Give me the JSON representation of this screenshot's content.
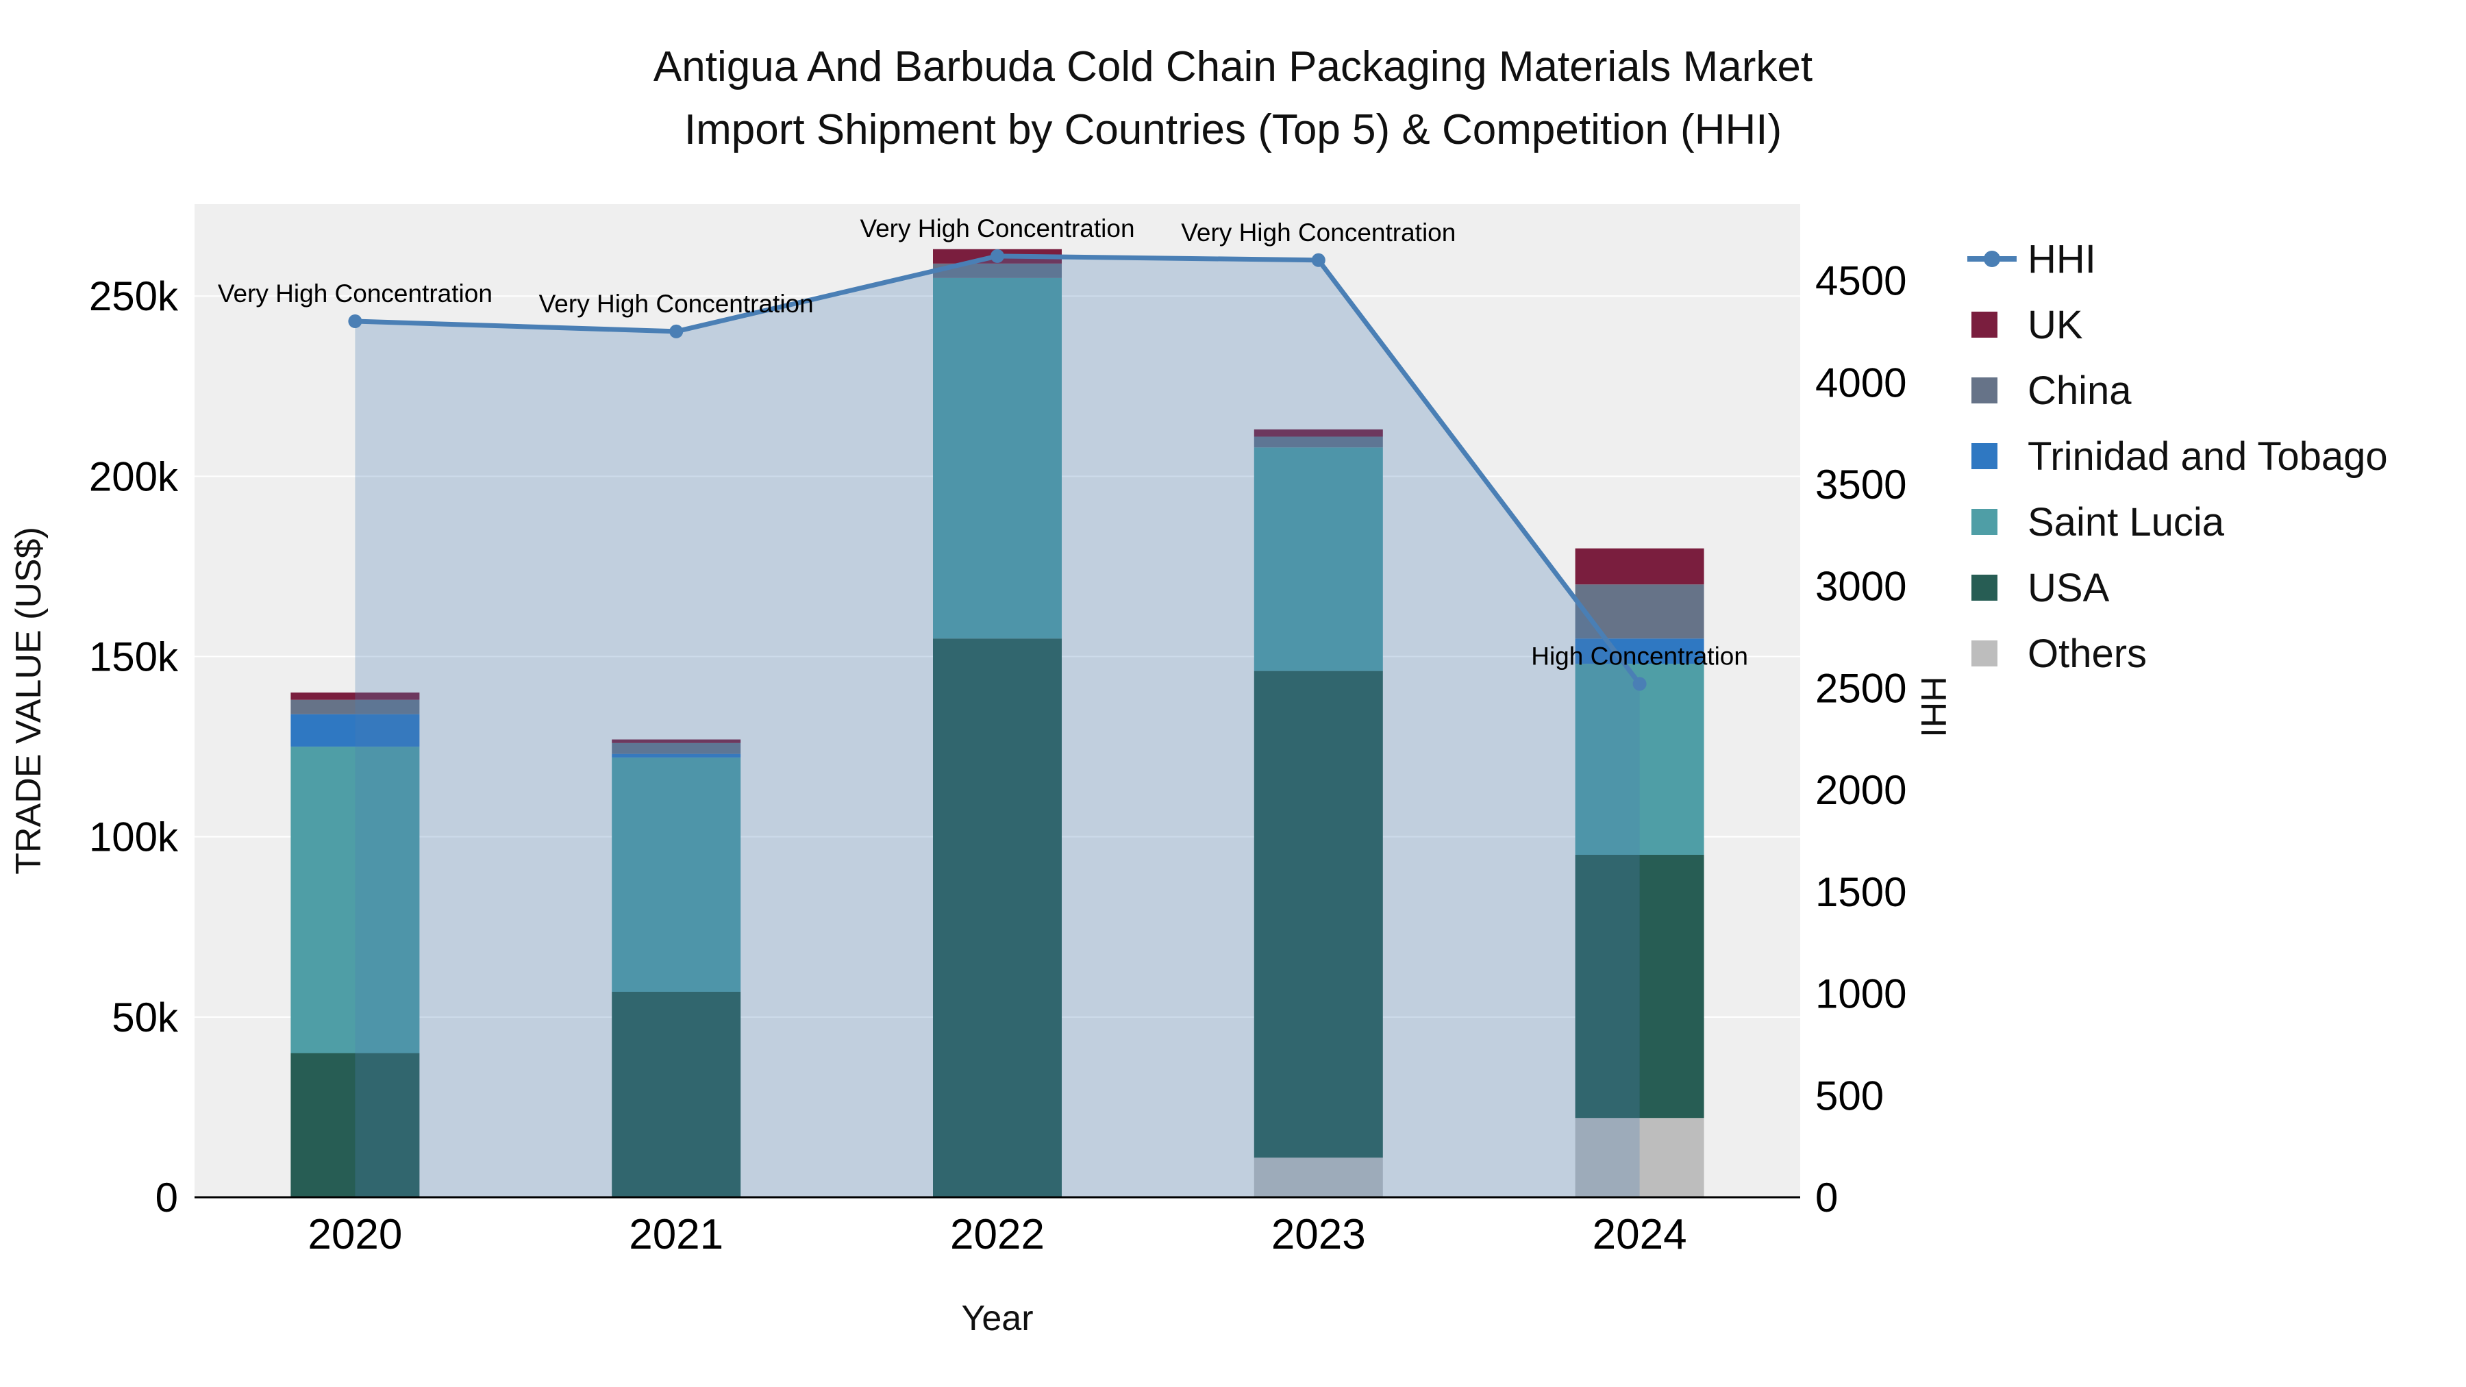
{
  "title": {
    "line1": "Antigua And Barbuda Cold Chain Packaging Materials Market",
    "line2": "Import Shipment by Countries (Top 5) & Competition (HHI)"
  },
  "axes": {
    "left_title": "TRADE VALUE (US$)",
    "bottom_title": "Year",
    "right_title": "HHI"
  },
  "legend": {
    "items": [
      {
        "label": "HHI",
        "type": "line"
      },
      {
        "label": "UK",
        "type": "square"
      },
      {
        "label": "China",
        "type": "square"
      },
      {
        "label": "Trinidad and Tobago",
        "type": "square"
      },
      {
        "label": "Saint Lucia",
        "type": "square"
      },
      {
        "label": "USA",
        "type": "square"
      },
      {
        "label": "Others",
        "type": "square"
      }
    ]
  },
  "chart_data": {
    "type": "bar",
    "subtype": "stacked bars with HHI line on secondary axis",
    "title": "Antigua And Barbuda Cold Chain Packaging Materials Market Import Shipment by Countries (Top 5) & Competition (HHI)",
    "xlabel": "Year",
    "ylabel": "TRADE VALUE (US$)",
    "ylabel_right": "HHI",
    "categories": [
      "2020",
      "2021",
      "2022",
      "2023",
      "2024"
    ],
    "series": [
      {
        "name": "Others",
        "values": [
          0,
          0,
          0,
          11000,
          22000
        ]
      },
      {
        "name": "USA",
        "values": [
          40000,
          57000,
          155000,
          135000,
          73000
        ]
      },
      {
        "name": "Saint Lucia",
        "values": [
          85000,
          65000,
          100000,
          62000,
          53000
        ]
      },
      {
        "name": "Trinidad and Tobago",
        "values": [
          9000,
          1000,
          0,
          0,
          7000
        ]
      },
      {
        "name": "China",
        "values": [
          4000,
          3000,
          4000,
          3000,
          15000
        ]
      },
      {
        "name": "UK",
        "values": [
          2000,
          1000,
          4000,
          2000,
          10000
        ]
      }
    ],
    "hhi": {
      "name": "HHI",
      "values": [
        4300,
        4250,
        4620,
        4600,
        2520
      ],
      "color": "#4a7fb5",
      "fill": "rgba(74,127,181,0.28)"
    },
    "colors": {
      "Others": "#bdbdbd",
      "USA": "#275d54",
      "Saint Lucia": "#4f9ea6",
      "Trinidad and Tobago": "#2f78c2",
      "China": "#667388",
      "UK": "#7a1e3e"
    },
    "left_axis": {
      "ticks": [
        0,
        50000,
        100000,
        150000,
        200000,
        250000
      ],
      "tick_labels": [
        "0",
        "50k",
        "100k",
        "150k",
        "200k",
        "250k"
      ],
      "max": 275500
    },
    "right_axis": {
      "ticks": [
        0,
        500,
        1000,
        1500,
        2000,
        2500,
        3000,
        3500,
        4000,
        4500
      ],
      "tick_labels": [
        "0",
        "500",
        "1000",
        "1500",
        "2000",
        "2500",
        "3000",
        "3500",
        "4000",
        "4500"
      ],
      "max": 4875
    },
    "annotations": [
      {
        "text": "Very High Concentration",
        "x_index": 0
      },
      {
        "text": "Very High Concentration",
        "x_index": 1
      },
      {
        "text": "Very High Concentration",
        "x_index": 2
      },
      {
        "text": "Very High Concentration",
        "x_index": 3
      },
      {
        "text": "High Concentration",
        "x_index": 4
      }
    ],
    "plot_bg": "#efefef",
    "grid_color": "#ffffff",
    "grid": true,
    "legend_position": "right"
  }
}
